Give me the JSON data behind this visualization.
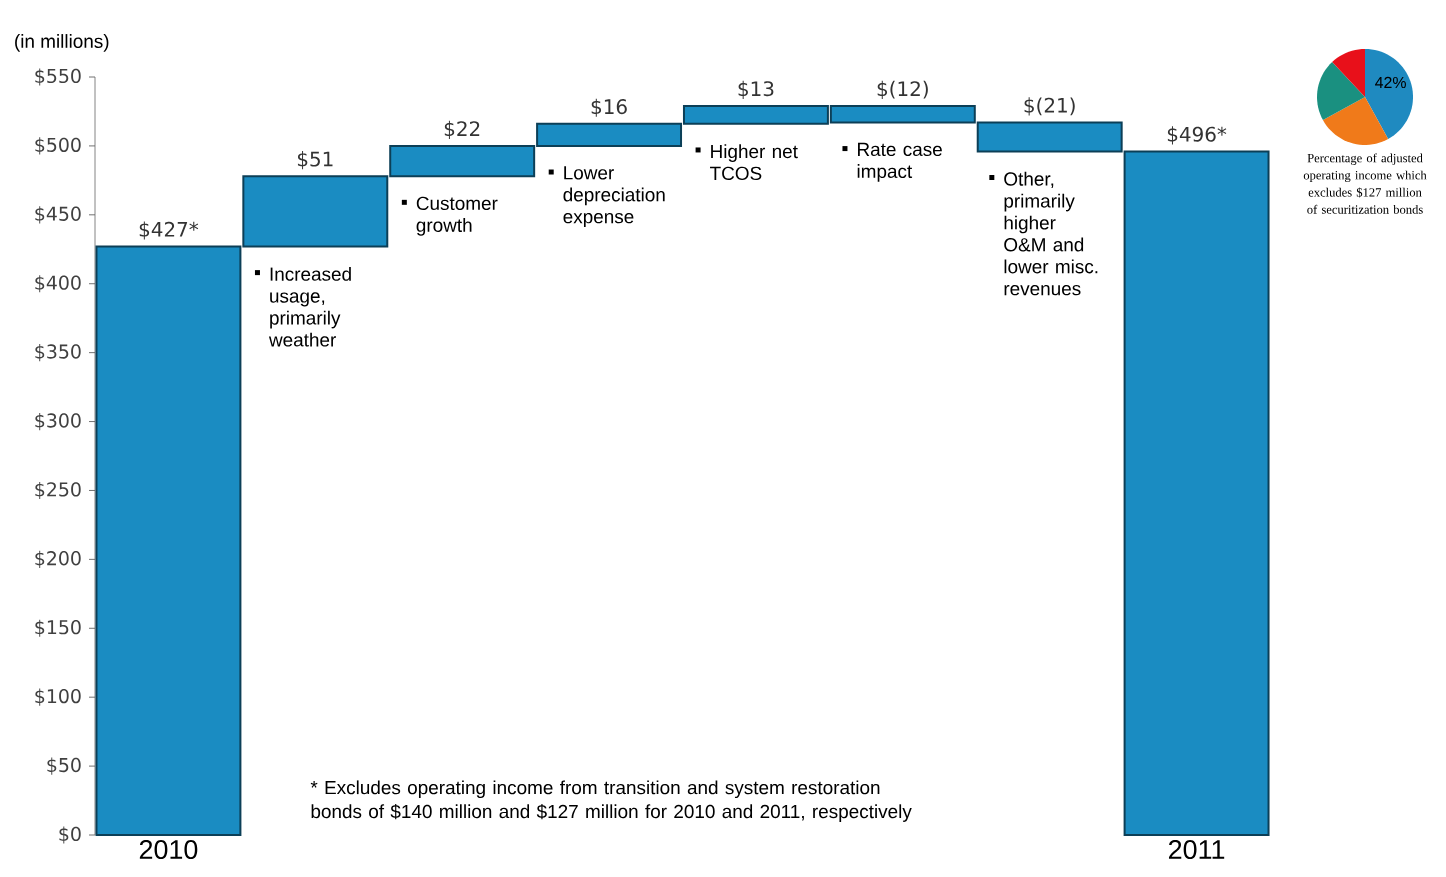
{
  "chart_data": [
    {
      "type": "bar",
      "ylabel": "(in millions)",
      "categories": [
        "2010",
        "Increased usage, primarily weather",
        "Customer growth",
        "Lower depreciation expense",
        "Higher net TCOS",
        "Rate case impact",
        "Other, primarily higher O&M and lower misc. revenues",
        "2011"
      ],
      "values": [
        427,
        51,
        22,
        16,
        13,
        -12,
        -21,
        496
      ],
      "base": [
        0,
        427,
        478,
        500,
        516,
        529,
        517,
        0
      ],
      "value_labels": [
        "$427*",
        "$51",
        "$22",
        "$16",
        "$13",
        "$(12)",
        "$(21)",
        "$496*"
      ],
      "color": "#1a8cc2",
      "ylim": [
        0,
        550
      ],
      "yticks": [
        {
          "value": 0,
          "label": "$0"
        },
        {
          "value": 50,
          "label": "$50"
        },
        {
          "value": 100,
          "label": "$100"
        },
        {
          "value": 150,
          "label": "$150"
        },
        {
          "value": 200,
          "label": "$200"
        },
        {
          "value": 250,
          "label": "$250"
        },
        {
          "value": 300,
          "label": "$300"
        },
        {
          "value": 350,
          "label": "$350"
        },
        {
          "value": 400,
          "label": "$400"
        },
        {
          "value": 450,
          "label": "$450"
        },
        {
          "value": 500,
          "label": "$500"
        },
        {
          "value": 550,
          "label": "$550"
        }
      ],
      "annotations": [
        "* Excludes operating income from transition and system restoration bonds of $140 million and $127 million for 2010 and 2011, respectively"
      ]
    },
    {
      "type": "pie",
      "title": "Percentage of adjusted operating income which excludes $127 million of securitization bonds",
      "categories": [
        null,
        null,
        null,
        null
      ],
      "values": [
        42,
        25,
        21,
        12
      ],
      "colors": [
        "#1f8ac0",
        "#f07a1a",
        "#1a9080",
        "#e8101a"
      ],
      "value_labels": [
        "42%",
        null,
        null,
        null
      ]
    }
  ]
}
